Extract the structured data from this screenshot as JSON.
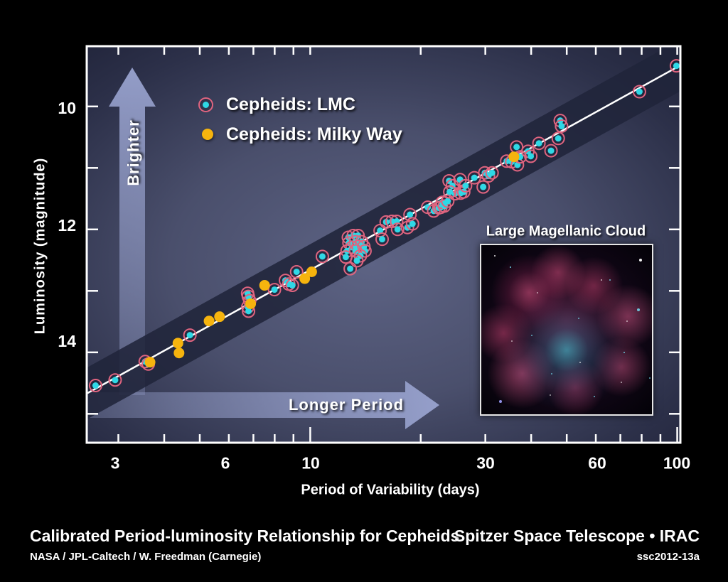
{
  "figure": {
    "y_axis_label": "Luminosity (magnitude)",
    "x_axis_label": "Period of Variability (days)",
    "brighter_arrow_label": "Brighter",
    "longer_period_arrow_label": "Longer Period",
    "legend": [
      {
        "label": "Cepheids: LMC",
        "marker": "lmc-marker"
      },
      {
        "label": "Cepheids: Milky Way",
        "marker": "milky-way-marker"
      }
    ],
    "inset": {
      "title": "Large Magellanic Cloud"
    }
  },
  "footer": {
    "title": "Calibrated Period-luminosity Relationship for Cepheids",
    "credit": "NASA / JPL-Caltech / W. Freedman (Carnegie)",
    "telescope": "Spitzer Space Telescope • IRAC",
    "release_id": "ssc2012-13a"
  },
  "colors": {
    "lmc_fill": "#2fd8e6",
    "lmc_ring": "#e0647f",
    "milky_way_fill": "#f6b40e",
    "fit_line": "#ffffff",
    "band": "#20243a",
    "arrow": "#99a3cf",
    "axis": "#ffffff"
  },
  "chart_data": {
    "type": "scatter",
    "x_scale": "log",
    "title": "Calibrated Period-luminosity Relationship for Cepheids",
    "xlabel": "Period of Variability (days)",
    "ylabel": "Luminosity (magnitude)",
    "xlim": [
      2.46,
      102
    ],
    "ylim": [
      15.47,
      9.02
    ],
    "y_axis_inverted": true,
    "x_ticks": [
      3,
      4,
      5,
      6,
      7,
      8,
      9,
      10,
      20,
      30,
      40,
      50,
      60,
      70,
      80,
      90,
      100
    ],
    "x_major_ticks": [
      10,
      100
    ],
    "x_tick_labels": [
      "3",
      "6",
      "10",
      "30",
      "60",
      "100"
    ],
    "x_tick_label_values": [
      3,
      6,
      10,
      30,
      60,
      100
    ],
    "y_ticks": [
      10,
      11,
      12,
      13,
      14,
      15
    ],
    "y_tick_labels": [
      "10",
      "12",
      "14"
    ],
    "y_tick_label_values": [
      10,
      12,
      14
    ],
    "fit_line": {
      "m_at_10_days": 12.66,
      "slope_mag_per_decade": -3.3,
      "band_half_width_mag": 0.42
    },
    "series": [
      {
        "name": "Cepheids: LMC",
        "points": [
          [
            2.6,
            14.54
          ],
          [
            2.94,
            14.45
          ],
          [
            3.55,
            14.15
          ],
          [
            3.62,
            14.19
          ],
          [
            4.7,
            13.72
          ],
          [
            6.75,
            13.04
          ],
          [
            6.78,
            13.09
          ],
          [
            6.84,
            13.16
          ],
          [
            6.76,
            13.26
          ],
          [
            6.79,
            13.33
          ],
          [
            7.99,
            12.98
          ],
          [
            8.56,
            12.83
          ],
          [
            8.74,
            12.89
          ],
          [
            8.94,
            12.91
          ],
          [
            9.18,
            12.69
          ],
          [
            10.79,
            12.44
          ],
          [
            12.85,
            12.64
          ],
          [
            12.7,
            12.13
          ],
          [
            13.1,
            12.1
          ],
          [
            13.5,
            12.1
          ],
          [
            12.75,
            12.22
          ],
          [
            13.3,
            12.2
          ],
          [
            13.8,
            12.2
          ],
          [
            13.0,
            12.29
          ],
          [
            13.5,
            12.28
          ],
          [
            14.0,
            12.28
          ],
          [
            12.6,
            12.35
          ],
          [
            13.3,
            12.35
          ],
          [
            14.1,
            12.35
          ],
          [
            13.7,
            12.43
          ],
          [
            12.5,
            12.45
          ],
          [
            13.4,
            12.51
          ],
          [
            15.5,
            12.02
          ],
          [
            15.7,
            12.16
          ],
          [
            16.1,
            11.88
          ],
          [
            16.7,
            11.87
          ],
          [
            17.2,
            11.87
          ],
          [
            17.3,
            12.0
          ],
          [
            18.4,
            11.97
          ],
          [
            18.7,
            11.76
          ],
          [
            19.0,
            11.91
          ],
          [
            20.9,
            11.64
          ],
          [
            21.7,
            11.7
          ],
          [
            22.4,
            11.65
          ],
          [
            22.7,
            11.64
          ],
          [
            22.9,
            11.56
          ],
          [
            23.2,
            11.62
          ],
          [
            23.7,
            11.54
          ],
          [
            24.8,
            11.42
          ],
          [
            25.7,
            11.41
          ],
          [
            23.9,
            11.21
          ],
          [
            24.4,
            11.29
          ],
          [
            24.0,
            11.39
          ],
          [
            25.6,
            11.19
          ],
          [
            26.2,
            11.39
          ],
          [
            26.5,
            11.29
          ],
          [
            28.0,
            11.16
          ],
          [
            29.6,
            11.31
          ],
          [
            29.9,
            11.08
          ],
          [
            30.6,
            11.13
          ],
          [
            31.3,
            11.08
          ],
          [
            34.3,
            10.89
          ],
          [
            35.4,
            10.9
          ],
          [
            36.5,
            10.66
          ],
          [
            36.7,
            10.95
          ],
          [
            37.3,
            10.82
          ],
          [
            39.2,
            10.73
          ],
          [
            39.9,
            10.81
          ],
          [
            42.0,
            10.6
          ],
          [
            45.3,
            10.72
          ],
          [
            47.4,
            10.52
          ],
          [
            48.0,
            10.23
          ],
          [
            48.4,
            10.32
          ],
          [
            78.9,
            9.76
          ],
          [
            99.5,
            9.34
          ]
        ]
      },
      {
        "name": "Cepheids: Milky Way",
        "points": [
          [
            3.66,
            14.16
          ],
          [
            4.36,
            13.85
          ],
          [
            4.39,
            14.01
          ],
          [
            5.3,
            13.49
          ],
          [
            5.66,
            13.42
          ],
          [
            6.88,
            13.21
          ],
          [
            7.51,
            12.91
          ],
          [
            9.66,
            12.8
          ],
          [
            10.09,
            12.69
          ],
          [
            35.9,
            10.82
          ]
        ]
      }
    ]
  }
}
